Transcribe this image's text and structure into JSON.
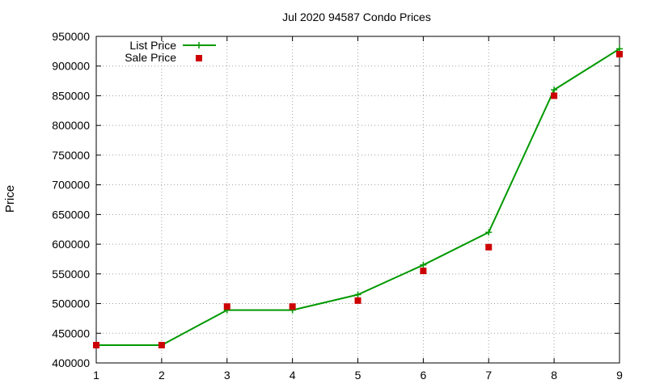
{
  "chart_data": {
    "type": "line",
    "title": "Jul 2020 94587 Condo Prices",
    "xlabel": "",
    "ylabel": "Price",
    "x": [
      1,
      2,
      3,
      4,
      5,
      6,
      7,
      8,
      9
    ],
    "xlim": [
      1,
      9
    ],
    "ylim": [
      400000,
      950000
    ],
    "xticks": [
      "1",
      "2",
      "3",
      "4",
      "5",
      "6",
      "7",
      "8",
      "9"
    ],
    "yticks": [
      "400000",
      "450000",
      "500000",
      "550000",
      "600000",
      "650000",
      "700000",
      "750000",
      "800000",
      "850000",
      "900000",
      "950000"
    ],
    "grid": true,
    "legend_position": "top-left",
    "series": [
      {
        "name": "List Price",
        "style": "line-with-plus-markers",
        "color": "#009900",
        "values": [
          430000,
          430000,
          489000,
          489000,
          515000,
          565000,
          620000,
          860000,
          929000
        ]
      },
      {
        "name": "Sale Price",
        "style": "square-markers",
        "color": "#cc0000",
        "values": [
          430000,
          430000,
          495000,
          495000,
          505000,
          555000,
          595000,
          850000,
          920000
        ]
      }
    ]
  }
}
